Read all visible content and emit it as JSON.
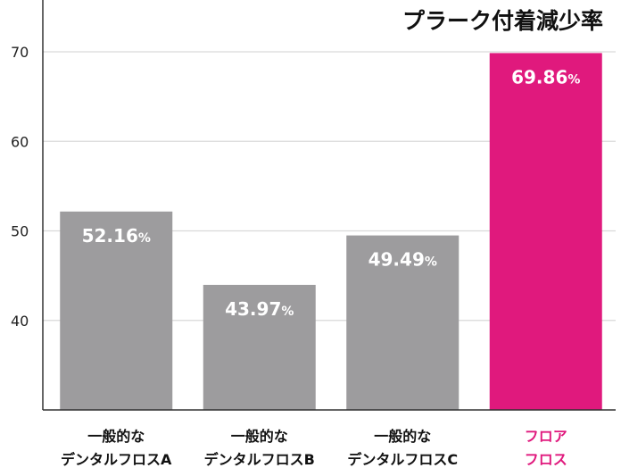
{
  "chart_data": {
    "type": "bar",
    "title": "プラーク付着減少率",
    "categories": [
      [
        "一般的な",
        "デンタルフロスA"
      ],
      [
        "一般的な",
        "デンタルフロスB"
      ],
      [
        "一般的な",
        "デンタルフロスC"
      ],
      [
        "フロア",
        "フロス"
      ]
    ],
    "values": [
      52.16,
      43.97,
      49.49,
      69.86
    ],
    "value_labels": [
      "52.16",
      "43.97",
      "49.49",
      "69.86"
    ],
    "unit": "%",
    "yticks": [
      40,
      50,
      60,
      70
    ],
    "ylim": [
      30,
      70
    ],
    "grid": true,
    "colors": [
      "#9d9c9e",
      "#9d9c9e",
      "#9d9c9e",
      "#e0197d"
    ],
    "label_colors": [
      "#111111",
      "#111111",
      "#111111",
      "#e0197d"
    ]
  }
}
